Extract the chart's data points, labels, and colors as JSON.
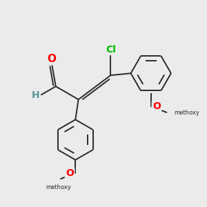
{
  "bg_color": "#ebebeb",
  "bond_color": "#2a2a2a",
  "bond_width": 1.4,
  "aldehyde_O_color": "#ff0000",
  "aldehyde_H_color": "#5a9898",
  "Cl_color": "#00bb00",
  "O_color": "#ff0000",
  "figsize": [
    3.0,
    3.0
  ],
  "dpi": 100,
  "xlim": [
    0,
    10
  ],
  "ylim": [
    0,
    10
  ]
}
